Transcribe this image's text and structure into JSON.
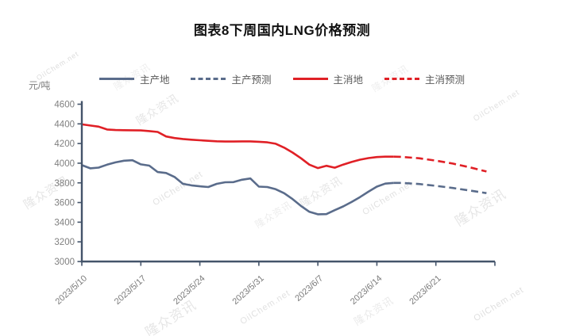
{
  "title": "图表8下周国内LNG价格预测",
  "y_unit": "元/吨",
  "legend": [
    {
      "label": "主产地",
      "color": "#5a6c8b",
      "dashed": false
    },
    {
      "label": "主产预测",
      "color": "#5a6c8b",
      "dashed": true
    },
    {
      "label": "主消地",
      "color": "#e02026",
      "dashed": false
    },
    {
      "label": "主消预测",
      "color": "#e02026",
      "dashed": true
    }
  ],
  "watermarks": [
    "隆众资讯",
    "OilChem.net"
  ],
  "colors": {
    "axis": "#44546a",
    "tick_label": "#7f7f7f",
    "x_label": "#7a7a7a",
    "main_production": "#5a6c8b",
    "main_consumption": "#e02026"
  },
  "chart_data": {
    "type": "line",
    "title": "图表8下周国内LNG价格预测",
    "ylabel": "元/吨",
    "ylim": [
      3000,
      4600
    ],
    "y_ticks": [
      3000,
      3200,
      3400,
      3600,
      3800,
      4000,
      4200,
      4400,
      4600
    ],
    "x_axis": {
      "labels": [
        "2023/5/10",
        "2023/5/17",
        "2023/5/24",
        "2023/5/31",
        "2023/6/7",
        "2023/6/14",
        "2023/6/21"
      ],
      "days_per_label": 7,
      "total_days": 49
    },
    "legend_position": "top",
    "grid": false,
    "series": [
      {
        "name": "主产地",
        "style": "solid",
        "color": "#5a6c8b",
        "points": [
          [
            0,
            3980
          ],
          [
            1,
            3948
          ],
          [
            2,
            3955
          ],
          [
            3,
            3985
          ],
          [
            4,
            4008
          ],
          [
            5,
            4025
          ],
          [
            6,
            4030
          ],
          [
            7,
            3988
          ],
          [
            8,
            3975
          ],
          [
            9,
            3910
          ],
          [
            10,
            3900
          ],
          [
            11,
            3860
          ],
          [
            12,
            3790
          ],
          [
            13,
            3775
          ],
          [
            14,
            3765
          ],
          [
            15,
            3758
          ],
          [
            16,
            3790
          ],
          [
            17,
            3806
          ],
          [
            18,
            3808
          ],
          [
            19,
            3832
          ],
          [
            20,
            3845
          ],
          [
            21,
            3762
          ],
          [
            22,
            3758
          ],
          [
            23,
            3735
          ],
          [
            24,
            3695
          ],
          [
            25,
            3635
          ],
          [
            26,
            3565
          ],
          [
            27,
            3505
          ],
          [
            28,
            3480
          ],
          [
            29,
            3482
          ],
          [
            30,
            3522
          ],
          [
            31,
            3560
          ],
          [
            32,
            3605
          ],
          [
            33,
            3655
          ],
          [
            34,
            3710
          ],
          [
            35,
            3762
          ],
          [
            36,
            3792
          ],
          [
            37,
            3800
          ]
        ]
      },
      {
        "name": "主产预测",
        "style": "dashed",
        "color": "#5a6c8b",
        "points": [
          [
            37,
            3800
          ],
          [
            38,
            3800
          ],
          [
            40,
            3788
          ],
          [
            42,
            3770
          ],
          [
            44,
            3748
          ],
          [
            46,
            3722
          ],
          [
            48,
            3696
          ]
        ]
      },
      {
        "name": "主消地",
        "style": "solid",
        "color": "#e02026",
        "points": [
          [
            0,
            4395
          ],
          [
            1,
            4383
          ],
          [
            2,
            4372
          ],
          [
            3,
            4343
          ],
          [
            4,
            4337
          ],
          [
            5,
            4336
          ],
          [
            6,
            4335
          ],
          [
            7,
            4333
          ],
          [
            8,
            4327
          ],
          [
            9,
            4318
          ],
          [
            10,
            4272
          ],
          [
            11,
            4256
          ],
          [
            12,
            4246
          ],
          [
            13,
            4239
          ],
          [
            14,
            4233
          ],
          [
            15,
            4228
          ],
          [
            16,
            4223
          ],
          [
            17,
            4220
          ],
          [
            18,
            4220
          ],
          [
            19,
            4222
          ],
          [
            20,
            4222
          ],
          [
            21,
            4218
          ],
          [
            22,
            4212
          ],
          [
            23,
            4198
          ],
          [
            24,
            4158
          ],
          [
            25,
            4108
          ],
          [
            26,
            4050
          ],
          [
            27,
            3985
          ],
          [
            28,
            3950
          ],
          [
            29,
            3974
          ],
          [
            30,
            3954
          ],
          [
            31,
            3986
          ],
          [
            32,
            4012
          ],
          [
            33,
            4036
          ],
          [
            34,
            4052
          ],
          [
            35,
            4062
          ],
          [
            36,
            4066
          ],
          [
            37,
            4066
          ]
        ]
      },
      {
        "name": "主消预测",
        "style": "dashed",
        "color": "#e02026",
        "points": [
          [
            37,
            4066
          ],
          [
            38,
            4064
          ],
          [
            40,
            4050
          ],
          [
            42,
            4026
          ],
          [
            44,
            3996
          ],
          [
            46,
            3958
          ],
          [
            48,
            3916
          ]
        ]
      }
    ]
  }
}
